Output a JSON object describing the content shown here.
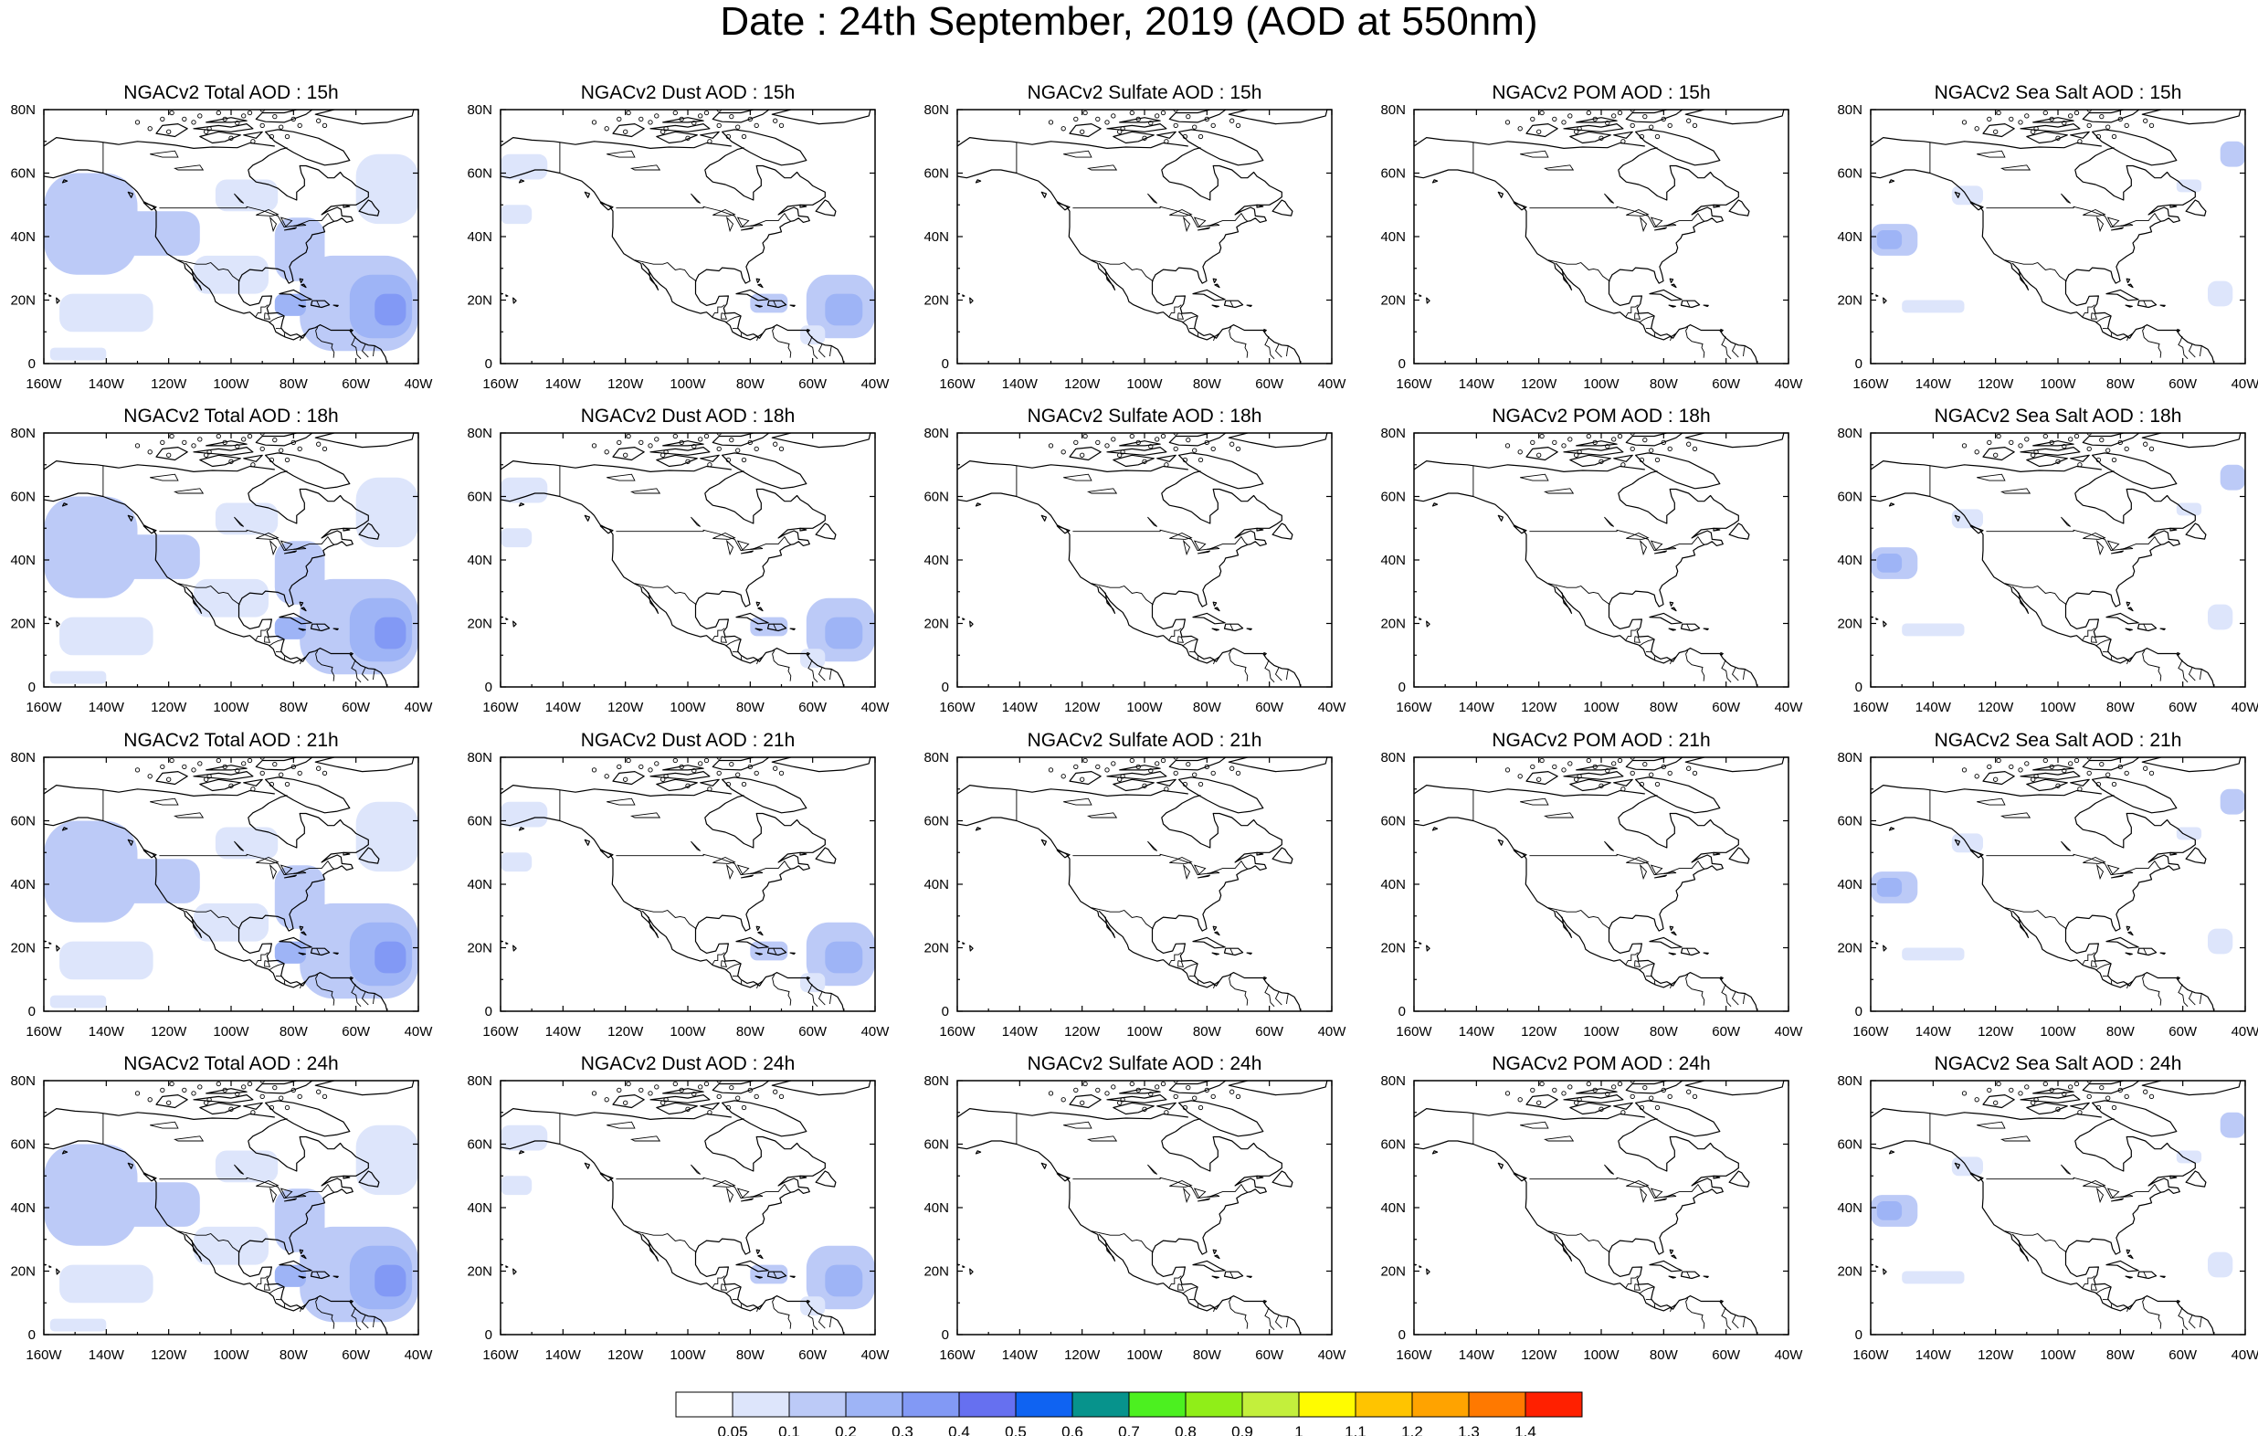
{
  "title": "Date : 24th September, 2019 (AOD at 550nm)",
  "chart_data": {
    "type": "heatmap",
    "variable": "AOD at 550nm",
    "date": "24th September, 2019",
    "xlim": [
      -160,
      -40
    ],
    "ylim": [
      0,
      80
    ],
    "x_ticks": [
      -160,
      -140,
      -120,
      -100,
      -80,
      -60,
      -40
    ],
    "x_tick_labels": [
      "160W",
      "140W",
      "120W",
      "100W",
      "80W",
      "60W",
      "40W"
    ],
    "y_ticks": [
      0,
      20,
      40,
      60,
      80
    ],
    "y_tick_labels": [
      "0",
      "20N",
      "40N",
      "60N",
      "80N"
    ],
    "rows": [
      "15h",
      "18h",
      "21h",
      "24h"
    ],
    "columns": [
      "Total",
      "Dust",
      "Sulfate",
      "POM",
      "Sea Salt"
    ],
    "panels": [
      {
        "title": "NGACv2 Total AOD : 15h",
        "species": "total",
        "hour": "15h"
      },
      {
        "title": "NGACv2 Dust AOD : 15h",
        "species": "dust",
        "hour": "15h"
      },
      {
        "title": "NGACv2 Sulfate AOD : 15h",
        "species": "sulfate",
        "hour": "15h"
      },
      {
        "title": "NGACv2 POM AOD : 15h",
        "species": "pom",
        "hour": "15h"
      },
      {
        "title": "NGACv2 Sea Salt AOD : 15h",
        "species": "seasalt",
        "hour": "15h"
      },
      {
        "title": "NGACv2 Total AOD : 18h",
        "species": "total",
        "hour": "18h"
      },
      {
        "title": "NGACv2 Dust AOD : 18h",
        "species": "dust",
        "hour": "18h"
      },
      {
        "title": "NGACv2 Sulfate AOD : 18h",
        "species": "sulfate",
        "hour": "18h"
      },
      {
        "title": "NGACv2 POM AOD : 18h",
        "species": "pom",
        "hour": "18h"
      },
      {
        "title": "NGACv2 Sea Salt AOD : 18h",
        "species": "seasalt",
        "hour": "18h"
      },
      {
        "title": "NGACv2 Total AOD : 21h",
        "species": "total",
        "hour": "21h"
      },
      {
        "title": "NGACv2 Dust AOD : 21h",
        "species": "dust",
        "hour": "21h"
      },
      {
        "title": "NGACv2 Sulfate AOD : 21h",
        "species": "sulfate",
        "hour": "21h"
      },
      {
        "title": "NGACv2 POM AOD : 21h",
        "species": "pom",
        "hour": "21h"
      },
      {
        "title": "NGACv2 Sea Salt AOD : 21h",
        "species": "seasalt",
        "hour": "21h"
      },
      {
        "title": "NGACv2 Total AOD : 24h",
        "species": "total",
        "hour": "24h"
      },
      {
        "title": "NGACv2 Dust AOD : 24h",
        "species": "dust",
        "hour": "24h"
      },
      {
        "title": "NGACv2 Sulfate AOD : 24h",
        "species": "sulfate",
        "hour": "24h"
      },
      {
        "title": "NGACv2 POM AOD : 24h",
        "species": "pom",
        "hour": "24h"
      },
      {
        "title": "NGACv2 Sea Salt  AOD : 24h",
        "species": "seasalt",
        "hour": "24h"
      }
    ],
    "colorbar": {
      "levels": [
        "0.05",
        "0.1",
        "0.2",
        "0.3",
        "0.4",
        "0.5",
        "0.6",
        "0.7",
        "0.8",
        "0.9",
        "1",
        "1.1",
        "1.2",
        "1.3",
        "1.4"
      ],
      "colors": [
        "#ffffff",
        "#dde5fb",
        "#bccaf7",
        "#9eb4f6",
        "#8299f5",
        "#6670f0",
        "#0f63f2",
        "#07938c",
        "#4cf020",
        "#90ee18",
        "#c3ef3c",
        "#fffc00",
        "#ffc400",
        "#ffa300",
        "#ff7900",
        "#ff2000"
      ]
    },
    "features": {
      "total": [
        {
          "lon": [
            -160,
            -130
          ],
          "lat": [
            28,
            60
          ],
          "level": 2
        },
        {
          "lon": [
            -160,
            -110
          ],
          "lat": [
            34,
            48
          ],
          "level": 2
        },
        {
          "lon": [
            -105,
            -85
          ],
          "lat": [
            48,
            58
          ],
          "level": 1
        },
        {
          "lon": [
            -112,
            -88
          ],
          "lat": [
            22,
            34
          ],
          "level": 1
        },
        {
          "lon": [
            -86,
            -70
          ],
          "lat": [
            26,
            46
          ],
          "level": 2
        },
        {
          "lon": [
            -78,
            -40
          ],
          "lat": [
            4,
            34
          ],
          "level": 2
        },
        {
          "lon": [
            -62,
            -42
          ],
          "lat": [
            8,
            28
          ],
          "level": 3
        },
        {
          "lon": [
            -54,
            -44
          ],
          "lat": [
            12,
            22
          ],
          "level": 4
        },
        {
          "lon": [
            -86,
            -76
          ],
          "lat": [
            15,
            22
          ],
          "level": 3
        },
        {
          "lon": [
            -60,
            -40
          ],
          "lat": [
            44,
            66
          ],
          "level": 1
        },
        {
          "lon": [
            -155,
            -125
          ],
          "lat": [
            10,
            22
          ],
          "level": 1
        },
        {
          "lon": [
            -158,
            -140
          ],
          "lat": [
            1,
            5
          ],
          "level": 1
        }
      ],
      "dust": [
        {
          "lon": [
            -160,
            -145
          ],
          "lat": [
            58,
            66
          ],
          "level": 1
        },
        {
          "lon": [
            -160,
            -150
          ],
          "lat": [
            44,
            50
          ],
          "level": 1
        },
        {
          "lon": [
            -80,
            -68
          ],
          "lat": [
            16,
            22
          ],
          "level": 2
        },
        {
          "lon": [
            -62,
            -40
          ],
          "lat": [
            8,
            28
          ],
          "level": 2
        },
        {
          "lon": [
            -56,
            -44
          ],
          "lat": [
            12,
            22
          ],
          "level": 3
        },
        {
          "lon": [
            -64,
            -56
          ],
          "lat": [
            6,
            12
          ],
          "level": 1
        }
      ],
      "sulfate": [],
      "pom": [],
      "seasalt": [
        {
          "lon": [
            -160,
            -145
          ],
          "lat": [
            34,
            44
          ],
          "level": 2
        },
        {
          "lon": [
            -158,
            -150
          ],
          "lat": [
            36,
            42
          ],
          "level": 3
        },
        {
          "lon": [
            -134,
            -124
          ],
          "lat": [
            50,
            56
          ],
          "level": 1
        },
        {
          "lon": [
            -150,
            -130
          ],
          "lat": [
            16,
            20
          ],
          "level": 1
        },
        {
          "lon": [
            -52,
            -44
          ],
          "lat": [
            18,
            26
          ],
          "level": 1
        },
        {
          "lon": [
            -48,
            -40
          ],
          "lat": [
            62,
            70
          ],
          "level": 2
        },
        {
          "lon": [
            -62,
            -54
          ],
          "lat": [
            54,
            58
          ],
          "level": 1
        }
      ]
    }
  }
}
